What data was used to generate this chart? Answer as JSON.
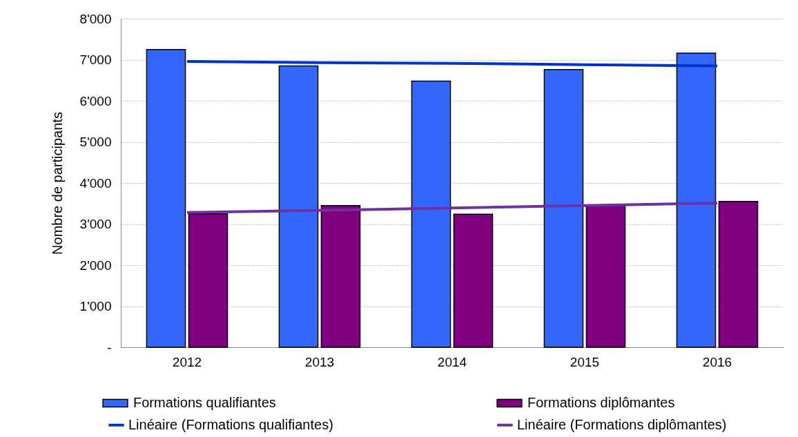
{
  "chart_data": {
    "type": "bar",
    "ylabel": "Nombre de participants",
    "categories": [
      "2012",
      "2013",
      "2014",
      "2015",
      "2016"
    ],
    "series": [
      {
        "name": "Formations qualifiantes",
        "color": "#3366ff",
        "values": [
          7250,
          6850,
          6480,
          6760,
          7160
        ]
      },
      {
        "name": "Formations diplômantes",
        "color": "#800080",
        "values": [
          3250,
          3450,
          3240,
          3450,
          3550
        ]
      },
      {
        "name": "Linéaire (Formations qualifiantes)",
        "type": "line",
        "color": "#0033cc",
        "values": [
          6960,
          6930,
          6910,
          6880,
          6850
        ]
      },
      {
        "name": "Linéaire (Formations diplômantes)",
        "type": "line",
        "color": "#7030a0",
        "values": [
          3280,
          3330,
          3390,
          3450,
          3510
        ]
      }
    ],
    "ylim": [
      0,
      8000
    ],
    "yticks": [
      {
        "value": 0,
        "label": "-"
      },
      {
        "value": 1000,
        "label": "1'000"
      },
      {
        "value": 2000,
        "label": "2'000"
      },
      {
        "value": 3000,
        "label": "3'000"
      },
      {
        "value": 4000,
        "label": "4'000"
      },
      {
        "value": 5000,
        "label": "5'000"
      },
      {
        "value": 6000,
        "label": "6'000"
      },
      {
        "value": 7000,
        "label": "7'000"
      },
      {
        "value": 8000,
        "label": "8'000"
      }
    ],
    "grid": "y",
    "legend": "bottom"
  }
}
